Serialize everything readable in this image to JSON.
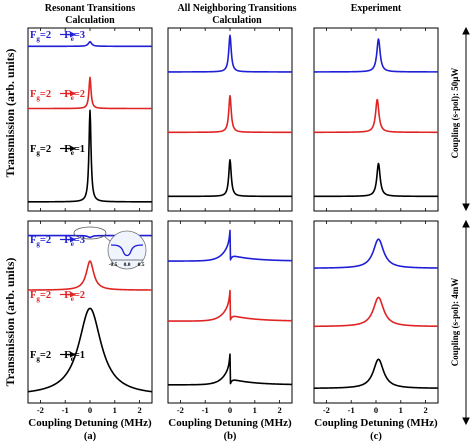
{
  "figure": {
    "y_axis_label": "Transmission (arb. units)",
    "x_axis_label": "Coupling Detuning (MHz)",
    "x_ticks": [
      "-2",
      "-1",
      "0",
      "1",
      "2"
    ],
    "column_titles": [
      [
        "Resonant Transitions",
        "Calculation"
      ],
      [
        "All Neighboring Transitions",
        "Calculation"
      ],
      [
        "Experiment"
      ]
    ],
    "subplot_labels": [
      "(a)",
      "(b)",
      "(c)"
    ],
    "row_labels": [
      "Coupling (s-pol): 50μW",
      "Coupling (s-pol): 4mW"
    ],
    "colors": {
      "Fe3": "#1f1fd6",
      "Fe2": "#e02424",
      "Fe1": "#000000"
    }
  },
  "annotations": {
    "top": [
      {
        "pre": "F",
        "pre_sub": "g",
        "mid": "=2",
        "post": "F",
        "post_sub": "e",
        "end": "=3",
        "color": "#1f1fd6"
      },
      {
        "pre": "F",
        "pre_sub": "g",
        "mid": "=2",
        "post": "F",
        "post_sub": "e",
        "end": "=2",
        "color": "#e02424"
      },
      {
        "pre": "F",
        "pre_sub": "g",
        "mid": "=2",
        "post": "F",
        "post_sub": "e",
        "end": "=1",
        "color": "#000000"
      }
    ],
    "bottom": [
      {
        "pre": "F",
        "pre_sub": "g",
        "mid": "=2",
        "post": "F",
        "post_sub": "e",
        "end": "=3",
        "color": "#1f1fd6"
      },
      {
        "pre": "F",
        "pre_sub": "g",
        "mid": "=2",
        "post": "F",
        "post_sub": "e",
        "end": "=2",
        "color": "#e02424"
      },
      {
        "pre": "F",
        "pre_sub": "g",
        "mid": "=2",
        "post": "F",
        "post_sub": "e",
        "end": "=1",
        "color": "#000000"
      }
    ],
    "inset_ticks": [
      "-0.5",
      "0.0",
      "0.5"
    ]
  },
  "chart_data": [
    {
      "type": "line",
      "panel": "top-left",
      "xlim": [
        -2.5,
        2.5
      ],
      "series": [
        {
          "line": "Fe3",
          "baseline": 0.9,
          "peaks": [
            {
              "kind": "lorentz",
              "center": 0.0,
              "amp": 0.025,
              "width": 0.08
            }
          ]
        },
        {
          "line": "Fe2",
          "baseline": 0.56,
          "peaks": [
            {
              "kind": "lorentz",
              "center": 0.0,
              "amp": 0.17,
              "width": 0.05
            }
          ]
        },
        {
          "line": "Fe1",
          "baseline": 0.05,
          "peaks": [
            {
              "kind": "lorentz",
              "center": 0.0,
              "amp": 0.5,
              "width": 0.05
            }
          ]
        }
      ]
    },
    {
      "type": "line",
      "panel": "top-middle",
      "xlim": [
        -2.5,
        2.5
      ],
      "series": [
        {
          "line": "Fe3",
          "baseline": 0.76,
          "peaks": [
            {
              "kind": "lorentz",
              "center": 0.0,
              "amp": 0.2,
              "width": 0.06
            }
          ]
        },
        {
          "line": "Fe2",
          "baseline": 0.43,
          "peaks": [
            {
              "kind": "lorentz",
              "center": 0.0,
              "amp": 0.2,
              "width": 0.06
            }
          ]
        },
        {
          "line": "Fe1",
          "baseline": 0.08,
          "peaks": [
            {
              "kind": "lorentz",
              "center": 0.0,
              "amp": 0.2,
              "width": 0.06
            }
          ]
        }
      ]
    },
    {
      "type": "line",
      "panel": "top-right",
      "xlim": [
        -2.5,
        2.5
      ],
      "series": [
        {
          "line": "Fe3",
          "baseline": 0.76,
          "peaks": [
            {
              "kind": "lorentz",
              "center": 0.1,
              "amp": 0.18,
              "width": 0.08
            }
          ]
        },
        {
          "line": "Fe2",
          "baseline": 0.43,
          "peaks": [
            {
              "kind": "lorentz",
              "center": 0.05,
              "amp": 0.18,
              "width": 0.08
            }
          ]
        },
        {
          "line": "Fe1",
          "baseline": 0.08,
          "peaks": [
            {
              "kind": "lorentz",
              "center": 0.1,
              "amp": 0.18,
              "width": 0.08
            }
          ]
        }
      ]
    },
    {
      "type": "line",
      "panel": "bottom-left",
      "xlim": [
        -2.5,
        2.5
      ],
      "series": [
        {
          "line": "Fe3",
          "baseline": 0.92,
          "peaks": [
            {
              "kind": "lorentz",
              "center": 0.0,
              "amp": -0.01,
              "width": 0.1
            }
          ]
        },
        {
          "line": "Fe2",
          "baseline": 0.62,
          "peaks": [
            {
              "kind": "lorentz",
              "center": 0.0,
              "amp": 0.16,
              "width": 0.18
            }
          ]
        },
        {
          "line": "Fe1",
          "baseline": 0.04,
          "peaks": [
            {
              "kind": "lorentz",
              "center": 0.0,
              "amp": 0.48,
              "width": 0.55
            }
          ]
        }
      ]
    },
    {
      "type": "line",
      "panel": "bottom-middle",
      "xlim": [
        -2.5,
        2.5
      ],
      "series": [
        {
          "line": "Fe3",
          "baseline": 0.78,
          "peaks": [
            {
              "kind": "fano",
              "center": 0.0,
              "amp": 0.12,
              "width": 0.6
            }
          ]
        },
        {
          "line": "Fe2",
          "baseline": 0.45,
          "peaks": [
            {
              "kind": "fano",
              "center": 0.0,
              "amp": 0.12,
              "width": 0.6
            }
          ]
        },
        {
          "line": "Fe1",
          "baseline": 0.1,
          "peaks": [
            {
              "kind": "fano",
              "center": 0.0,
              "amp": 0.12,
              "width": 0.6
            }
          ]
        }
      ]
    },
    {
      "type": "line",
      "panel": "bottom-right",
      "xlim": [
        -2.5,
        2.5
      ],
      "series": [
        {
          "line": "Fe3",
          "baseline": 0.74,
          "peaks": [
            {
              "kind": "lorentz",
              "center": 0.1,
              "amp": 0.16,
              "width": 0.25
            }
          ]
        },
        {
          "line": "Fe2",
          "baseline": 0.42,
          "peaks": [
            {
              "kind": "lorentz",
              "center": 0.1,
              "amp": 0.16,
              "width": 0.25
            }
          ]
        },
        {
          "line": "Fe1",
          "baseline": 0.08,
          "peaks": [
            {
              "kind": "lorentz",
              "center": 0.1,
              "amp": 0.16,
              "width": 0.25
            }
          ]
        }
      ]
    }
  ]
}
